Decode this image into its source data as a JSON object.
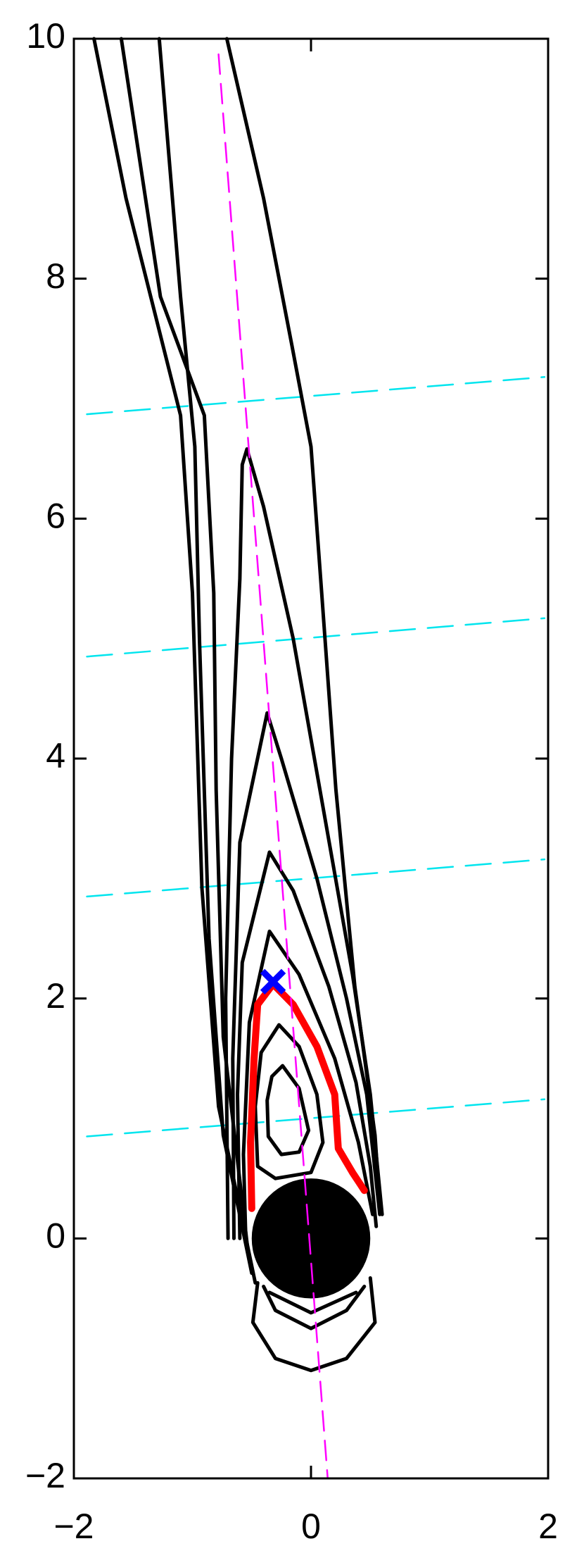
{
  "chart_data": {
    "type": "contour",
    "xlim": [
      -2,
      2
    ],
    "ylim": [
      -2,
      10
    ],
    "xticks": [
      {
        "value": -2,
        "label": "−2"
      },
      0,
      2
    ],
    "yticks": [
      {
        "value": -2,
        "label": "−2"
      },
      0,
      2,
      4,
      6,
      8,
      10
    ],
    "contours": {
      "color": "#000000",
      "lines": [
        {
          "x": [
            -0.24,
            -0.1,
            -0.02,
            -0.1,
            -0.25,
            -0.36,
            -0.37,
            -0.33,
            -0.24
          ],
          "y": [
            1.44,
            1.25,
            0.9,
            0.72,
            0.7,
            0.85,
            1.15,
            1.35,
            1.44
          ]
        },
        {
          "x": [
            -0.27,
            -0.1,
            0.05,
            0.1,
            0.0,
            -0.3,
            -0.45,
            -0.47,
            -0.42,
            -0.27
          ],
          "y": [
            1.78,
            1.6,
            1.2,
            0.8,
            0.55,
            0.5,
            0.6,
            1.1,
            1.55,
            1.78
          ]
        },
        {
          "x": [
            -0.55,
            -0.57,
            -0.52,
            -0.35,
            -0.1,
            0.2,
            0.4,
            0.52
          ],
          "y": [
            0,
            0.7,
            1.8,
            2.56,
            2.2,
            1.5,
            0.8,
            0.2
          ]
        },
        {
          "x": [
            -0.6,
            -0.62,
            -0.58,
            -0.35,
            -0.15,
            0.15,
            0.38,
            0.5,
            0.55
          ],
          "y": [
            0,
            1.2,
            2.3,
            3.22,
            2.9,
            2.1,
            1.3,
            0.6,
            0.1
          ]
        },
        {
          "x": [
            -0.65,
            -0.66,
            -0.6,
            -0.37,
            -0.25,
            0.05,
            0.3,
            0.47,
            0.58
          ],
          "y": [
            0,
            1.5,
            3.3,
            4.38,
            4.0,
            3.0,
            2.0,
            1.2,
            0.2
          ]
        },
        {
          "x": [
            -0.7,
            -0.72,
            -0.67,
            -0.6,
            -0.58,
            -0.54,
            -0.4,
            -0.15,
            0.1,
            0.35,
            0.5,
            0.6
          ],
          "y": [
            0,
            2,
            4,
            5.5,
            6.45,
            6.58,
            6.1,
            5.0,
            3.6,
            2.2,
            1.2,
            0.2
          ]
        },
        {
          "x": [
            -0.71,
            -0.4,
            -0.16,
            0,
            0.09,
            0.21,
            0.37,
            0.54,
            0.58
          ],
          "y": [
            10,
            8.67,
            7.44,
            6.6,
            5.38,
            3.74,
            2.1,
            0.86,
            0.28
          ]
        },
        {
          "x": [
            -1.28,
            -1.1,
            -0.98,
            -0.94,
            -0.86,
            -0.74,
            -0.5
          ],
          "y": [
            10,
            7.85,
            6.6,
            4.97,
            2.5,
            0.86,
            -0.29
          ]
        },
        {
          "x": [
            -1.6,
            -1.27,
            -0.9,
            -0.82,
            -0.8,
            -0.74,
            -0.53
          ],
          "y": [
            10,
            7.85,
            6.86,
            5.38,
            3.74,
            1.68,
            -0.12
          ]
        },
        {
          "x": [
            -1.83,
            -1.56,
            -1.1,
            -1.0,
            -0.92,
            -0.78,
            -0.47
          ],
          "y": [
            10,
            8.67,
            6.86,
            5.38,
            2.92,
            1.1,
            -0.37
          ]
        },
        {
          "x": [
            -0.45,
            -0.49,
            -0.3,
            0,
            0.3,
            0.54,
            0.5
          ],
          "y": [
            -0.37,
            -0.7,
            -1.0,
            -1.1,
            -1.0,
            -0.7,
            -0.33
          ]
        },
        {
          "x": [
            -0.4,
            -0.3,
            0,
            0.3,
            0.45
          ],
          "y": [
            -0.4,
            -0.6,
            -0.75,
            -0.6,
            -0.4
          ]
        },
        {
          "x": [
            -0.35,
            0,
            0.38
          ],
          "y": [
            -0.45,
            -0.62,
            -0.45
          ]
        }
      ]
    },
    "highlight": {
      "color": "#ff0000",
      "x": [
        -0.5,
        -0.51,
        -0.48,
        -0.45,
        -0.32,
        -0.15,
        0.05,
        0.2,
        0.23,
        0.35,
        0.45
      ],
      "y": [
        0.25,
        0.8,
        1.5,
        1.95,
        2.12,
        1.95,
        1.6,
        1.2,
        0.75,
        0.55,
        0.4
      ]
    },
    "axis_line": {
      "color": "#ff00ff",
      "x": [
        -0.78,
        0.14
      ],
      "y": [
        9.87,
        -1.99
      ]
    },
    "cross_lines": {
      "color": "#00e5ee",
      "lines": [
        {
          "x": [
            -1.89,
            1.97
          ],
          "y": [
            0.85,
            1.16
          ]
        },
        {
          "x": [
            -1.89,
            1.97
          ],
          "y": [
            2.85,
            3.16
          ]
        },
        {
          "x": [
            -1.89,
            1.97
          ],
          "y": [
            4.85,
            5.17
          ]
        },
        {
          "x": [
            -1.89,
            1.97
          ],
          "y": [
            6.87,
            7.18
          ]
        }
      ]
    },
    "body": {
      "color": "#000000",
      "x": 0,
      "y": 0,
      "radius": 0.5
    },
    "marker": {
      "color": "#0000ff",
      "x": -0.32,
      "y": 2.14
    }
  }
}
